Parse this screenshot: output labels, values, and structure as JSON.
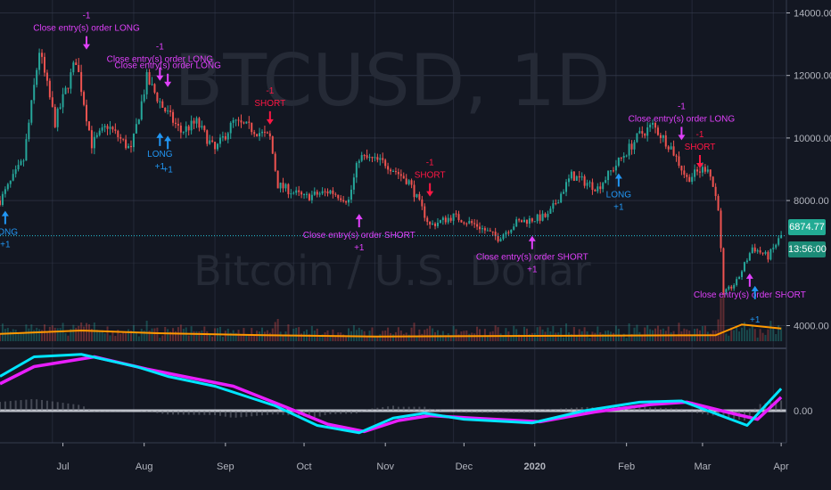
{
  "chart_data": [
    {
      "type": "candlestick",
      "symbol_watermark": "BTCUSD, 1D",
      "subtitle_watermark": "Bitcoin / U.S. Dollar",
      "price_axis": {
        "ticks": [
          {
            "value": 14000,
            "label": "14000.00"
          },
          {
            "value": 12000,
            "label": "12000.00"
          },
          {
            "value": 10000,
            "label": "10000.00"
          },
          {
            "value": 8000,
            "label": "8000.00"
          },
          {
            "value": 4000,
            "label": "4000.00"
          }
        ],
        "ylim": [
          3600,
          14400
        ]
      },
      "last_price": {
        "value": 6874.77,
        "label": "6874.77"
      },
      "countdown": {
        "label": "13:56:00"
      },
      "time_axis": {
        "labels": [
          "Jul",
          "Aug",
          "Sep",
          "Oct",
          "Nov",
          "Dec",
          "2020",
          "Feb",
          "Mar",
          "Apr"
        ],
        "xlim": [
          "2019-06-11",
          "2020-04-06"
        ]
      },
      "price_path": [
        [
          "2019-06-11",
          8000
        ],
        [
          "2019-06-20",
          9300
        ],
        [
          "2019-06-26",
          12800
        ],
        [
          "2019-07-02",
          10500
        ],
        [
          "2019-07-10",
          12500
        ],
        [
          "2019-07-16",
          9800
        ],
        [
          "2019-07-22",
          10400
        ],
        [
          "2019-07-31",
          9600
        ],
        [
          "2019-08-06",
          11900
        ],
        [
          "2019-08-12",
          11000
        ],
        [
          "2019-08-19",
          10200
        ],
        [
          "2019-08-25",
          10500
        ],
        [
          "2019-09-01",
          9600
        ],
        [
          "2019-09-08",
          10500
        ],
        [
          "2019-09-15",
          10300
        ],
        [
          "2019-09-22",
          10000
        ],
        [
          "2019-09-25",
          8500
        ],
        [
          "2019-10-05",
          8100
        ],
        [
          "2019-10-15",
          8300
        ],
        [
          "2019-10-22",
          8000
        ],
        [
          "2019-10-26",
          9400
        ],
        [
          "2019-11-05",
          9200
        ],
        [
          "2019-11-14",
          8600
        ],
        [
          "2019-11-22",
          7200
        ],
        [
          "2019-12-01",
          7500
        ],
        [
          "2019-12-10",
          7200
        ],
        [
          "2019-12-18",
          6800
        ],
        [
          "2019-12-25",
          7300
        ],
        [
          "2020-01-06",
          7500
        ],
        [
          "2020-01-15",
          8800
        ],
        [
          "2020-01-25",
          8400
        ],
        [
          "2020-02-10",
          10100
        ],
        [
          "2020-02-15",
          10400
        ],
        [
          "2020-02-22",
          9700
        ],
        [
          "2020-02-28",
          8700
        ],
        [
          "2020-03-07",
          9100
        ],
        [
          "2020-03-11",
          7800
        ],
        [
          "2020-03-13",
          5000
        ],
        [
          "2020-03-18",
          5400
        ],
        [
          "2020-03-24",
          6500
        ],
        [
          "2020-03-30",
          6200
        ],
        [
          "2020-04-04",
          6874.77
        ]
      ],
      "volume_ma": [
        [
          "2019-06-11",
          0.55
        ],
        [
          "2019-07-12",
          0.8
        ],
        [
          "2019-08-10",
          0.6
        ],
        [
          "2019-09-20",
          0.45
        ],
        [
          "2019-11-01",
          0.35
        ],
        [
          "2020-01-01",
          0.4
        ],
        [
          "2020-03-10",
          0.45
        ],
        [
          "2020-03-20",
          1.25
        ],
        [
          "2020-04-04",
          0.95
        ]
      ],
      "signals": [
        {
          "date": "2019-06-13",
          "price": 7700,
          "side": "long",
          "text": "LONG",
          "qty": "+1"
        },
        {
          "date": "2019-07-14",
          "price": 12800,
          "side": "close_long",
          "text": "Close entry(s) order LONG",
          "qty": "-1"
        },
        {
          "date": "2019-08-11",
          "price": 11800,
          "side": "close_long",
          "text": "Close entry(s) order LONG",
          "qty": "-1"
        },
        {
          "date": "2019-08-14",
          "price": 11600,
          "side": "close_long",
          "text": "Close entry(s) order LONG",
          "qty": ""
        },
        {
          "date": "2019-08-11",
          "price": 10200,
          "side": "long",
          "text": "LONG",
          "qty": "+1"
        },
        {
          "date": "2019-08-14",
          "price": 10100,
          "side": "long",
          "text": "",
          "qty": "+1"
        },
        {
          "date": "2019-09-22",
          "price": 10400,
          "side": "short",
          "text": "SHORT",
          "qty": "-1"
        },
        {
          "date": "2019-10-26",
          "price": 7600,
          "side": "close_short",
          "text": "Close entry(s) order SHORT",
          "qty": "+1"
        },
        {
          "date": "2019-11-22",
          "price": 8100,
          "side": "short",
          "text": "SHORT",
          "qty": "-1"
        },
        {
          "date": "2019-12-31",
          "price": 6900,
          "side": "close_short",
          "text": "Close entry(s) order SHORT",
          "qty": "+1"
        },
        {
          "date": "2020-02-02",
          "price": 8900,
          "side": "long",
          "text": "LONG",
          "qty": "+1"
        },
        {
          "date": "2020-02-26",
          "price": 9900,
          "side": "close_long",
          "text": "Close entry(s) order LONG",
          "qty": "-1"
        },
        {
          "date": "2020-03-04",
          "price": 9000,
          "side": "short",
          "text": "SHORT",
          "qty": "-1"
        },
        {
          "date": "2020-03-23",
          "price": 5700,
          "side": "close_short",
          "text": "Close entry(s) order SHORT",
          "qty": ""
        },
        {
          "date": "2020-03-25",
          "price": 5300,
          "side": "long",
          "text": "",
          "qty": "+1"
        }
      ],
      "osc_axis": {
        "ticks": [
          {
            "value": 0,
            "label": "0.00"
          }
        ],
        "ylim": [
          -1.3,
          2.6
        ]
      },
      "osc_fast": [
        [
          "2019-06-11",
          1.4
        ],
        [
          "2019-06-24",
          2.2
        ],
        [
          "2019-07-12",
          2.3
        ],
        [
          "2019-08-02",
          1.8
        ],
        [
          "2019-08-14",
          1.4
        ],
        [
          "2019-09-01",
          1.0
        ],
        [
          "2019-09-24",
          0.2
        ],
        [
          "2019-10-10",
          -0.6
        ],
        [
          "2019-10-26",
          -0.9
        ],
        [
          "2019-11-08",
          -0.3
        ],
        [
          "2019-11-20",
          -0.1
        ],
        [
          "2019-12-05",
          -0.35
        ],
        [
          "2019-12-31",
          -0.5
        ],
        [
          "2020-01-20",
          0.0
        ],
        [
          "2020-02-10",
          0.35
        ],
        [
          "2020-02-26",
          0.4
        ],
        [
          "2020-03-12",
          -0.2
        ],
        [
          "2020-03-22",
          -0.6
        ],
        [
          "2020-04-04",
          0.9
        ]
      ],
      "osc_slow": [
        [
          "2019-06-11",
          1.1
        ],
        [
          "2019-06-24",
          1.8
        ],
        [
          "2019-07-17",
          2.2
        ],
        [
          "2019-08-06",
          1.7
        ],
        [
          "2019-08-20",
          1.4
        ],
        [
          "2019-09-08",
          1.0
        ],
        [
          "2019-09-28",
          0.15
        ],
        [
          "2019-10-14",
          -0.55
        ],
        [
          "2019-10-28",
          -0.85
        ],
        [
          "2019-11-10",
          -0.4
        ],
        [
          "2019-11-22",
          -0.2
        ],
        [
          "2019-12-08",
          -0.3
        ],
        [
          "2020-01-03",
          -0.45
        ],
        [
          "2020-01-24",
          -0.05
        ],
        [
          "2020-02-14",
          0.25
        ],
        [
          "2020-02-28",
          0.35
        ],
        [
          "2020-03-16",
          -0.1
        ],
        [
          "2020-03-26",
          -0.35
        ],
        [
          "2020-04-04",
          0.55
        ]
      ],
      "colors": {
        "background": "#131722",
        "grid": "#363c4e",
        "up": "#26a69a",
        "down": "#ef5350",
        "long_arrow": "#2196f3",
        "short_arrow": "#ff1744",
        "close_marker": "#e040fb",
        "volume_ma": "#ff9800",
        "osc_fast": "#00e5ff",
        "osc_slow": "#e91eff",
        "zero_line": "#d1d4dc",
        "last_price_line": "#26c6da",
        "last_price_tag": "#22ab94",
        "countdown_tag": "#1b8b77",
        "axis_text": "#b2b5be",
        "watermark": "#2a2e39"
      }
    }
  ]
}
